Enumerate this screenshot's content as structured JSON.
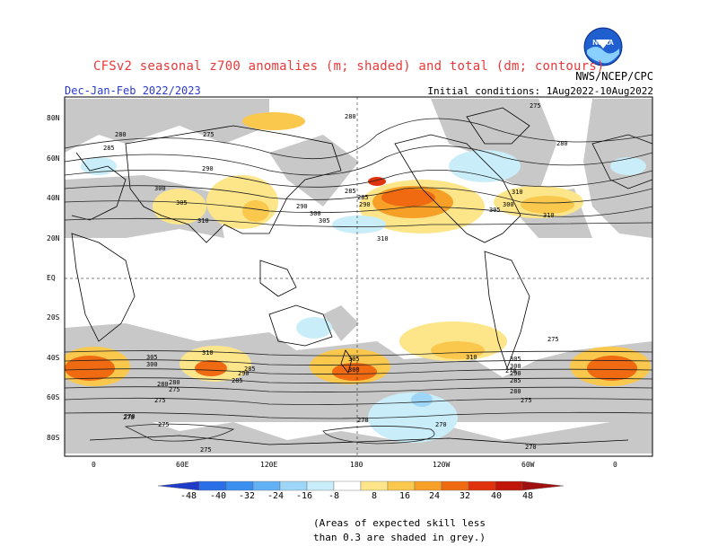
{
  "header": {
    "title": "CFSv2 seasonal z700 anomalies (m; shaded) and total (dm; contours)",
    "agency": "NWS/NCEP/CPC",
    "period": "Dec-Jan-Feb 2022/2023",
    "initial_conditions": "Initial conditions: 1Aug2022-10Aug2022"
  },
  "axes": {
    "lat_labels": [
      "80N",
      "60N",
      "40N",
      "20N",
      "EQ",
      "20S",
      "40S",
      "60S",
      "80S"
    ],
    "lon_labels": [
      "0",
      "60E",
      "120E",
      "180",
      "120W",
      "60W",
      "0"
    ]
  },
  "colorbar": {
    "labels": [
      "-48",
      "-40",
      "-32",
      "-24",
      "-16",
      "-8",
      "8",
      "16",
      "24",
      "32",
      "40",
      "48"
    ],
    "colors": [
      "#1e3cc8",
      "#2b6fe8",
      "#3a8ff0",
      "#62b1f5",
      "#9ed6f8",
      "#c9eef9",
      "#ffffff",
      "#fde68a",
      "#fbc84e",
      "#f7a027",
      "#f06a12",
      "#e0320c",
      "#c0160a",
      "#a01010"
    ]
  },
  "contour_labels": [
    "280",
    "275",
    "285",
    "290",
    "300",
    "305",
    "310",
    "280",
    "285",
    "290",
    "300",
    "305",
    "310",
    "310",
    "275",
    "280",
    "285",
    "290",
    "300",
    "305",
    "310",
    "305",
    "300",
    "290",
    "285",
    "280",
    "275",
    "270",
    "275",
    "310",
    "305",
    "300",
    "285",
    "280",
    "275",
    "270",
    "275",
    "310",
    "305",
    "300",
    "290",
    "285",
    "280",
    "275",
    "270",
    "270",
    "270",
    "275",
    "270"
  ],
  "note": {
    "line1": "(Areas of expected skill less",
    "line2": "than 0.3 are shaded in grey.)"
  }
}
